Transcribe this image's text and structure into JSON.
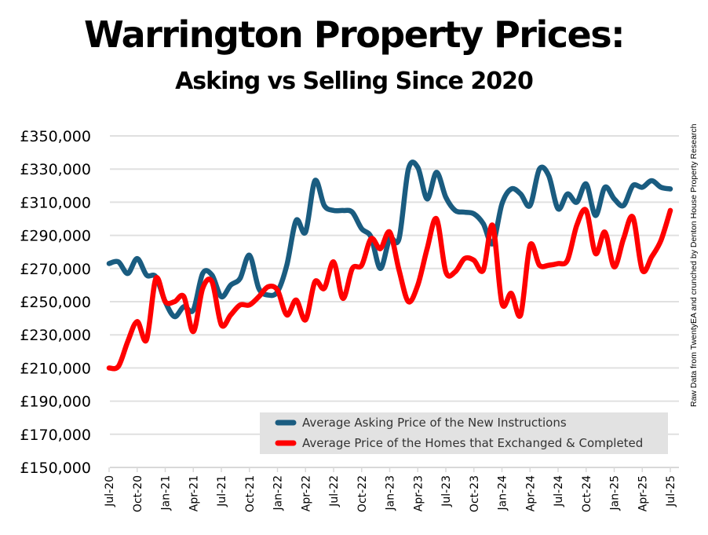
{
  "chart_data": {
    "type": "line",
    "title": "Warrington Property Prices:",
    "subtitle": "Asking vs Selling Since 2020",
    "xlabel": "",
    "ylabel": "",
    "ylim": [
      150000,
      350000
    ],
    "yticks": [
      150000,
      170000,
      190000,
      210000,
      230000,
      250000,
      270000,
      290000,
      310000,
      330000,
      350000
    ],
    "ytick_labels": [
      "£150,000",
      "£170,000",
      "£190,000",
      "£210,000",
      "£230,000",
      "£250,000",
      "£270,000",
      "£290,000",
      "£310,000",
      "£330,000",
      "£350,000"
    ],
    "xtick_labels": [
      "Jul-20",
      "Oct-20",
      "Jan-21",
      "Apr-21",
      "Jul-21",
      "Oct-21",
      "Jan-22",
      "Apr-22",
      "Jul-22",
      "Oct-22",
      "Jan-23",
      "Apr-23",
      "Jul-23",
      "Oct-23",
      "Jan-24",
      "Apr-24",
      "Jul-24",
      "Oct-24",
      "Jan-25",
      "Apr-25",
      "Jul-25"
    ],
    "xtick_every_months": 3,
    "grid": "horizontal",
    "legend_position": "bottom-right",
    "x": [
      "Jul-20",
      "Aug-20",
      "Sep-20",
      "Oct-20",
      "Nov-20",
      "Dec-20",
      "Jan-21",
      "Feb-21",
      "Mar-21",
      "Apr-21",
      "May-21",
      "Jun-21",
      "Jul-21",
      "Aug-21",
      "Sep-21",
      "Oct-21",
      "Nov-21",
      "Dec-21",
      "Jan-22",
      "Feb-22",
      "Mar-22",
      "Apr-22",
      "May-22",
      "Jun-22",
      "Jul-22",
      "Aug-22",
      "Sep-22",
      "Oct-22",
      "Nov-22",
      "Dec-22",
      "Jan-23",
      "Feb-23",
      "Mar-23",
      "Apr-23",
      "May-23",
      "Jun-23",
      "Jul-23",
      "Aug-23",
      "Sep-23",
      "Oct-23",
      "Nov-23",
      "Dec-23",
      "Jan-24",
      "Feb-24",
      "Mar-24",
      "Apr-24",
      "May-24",
      "Jun-24",
      "Jul-24",
      "Aug-24",
      "Sep-24",
      "Oct-24",
      "Nov-24",
      "Dec-24",
      "Jan-25",
      "Feb-25",
      "Mar-25",
      "Apr-25",
      "May-25",
      "Jun-25",
      "Jul-25"
    ],
    "series": [
      {
        "name": "Average Asking Price of the New Instructions",
        "color": "#1a5c80",
        "values": [
          273000,
          274000,
          267000,
          276000,
          266000,
          265000,
          250000,
          241000,
          247000,
          245000,
          267000,
          266000,
          253000,
          260000,
          264000,
          278000,
          258000,
          254000,
          256000,
          272000,
          299000,
          292000,
          323000,
          308000,
          305000,
          305000,
          304000,
          294000,
          289000,
          270000,
          288000,
          288000,
          330000,
          331000,
          312000,
          328000,
          313000,
          305000,
          304000,
          303000,
          297000,
          285000,
          309000,
          318000,
          315000,
          308000,
          330000,
          326000,
          306000,
          315000,
          310000,
          321000,
          302000,
          319000,
          312000,
          308000,
          320000,
          319000,
          323000,
          319000,
          318000
        ]
      },
      {
        "name": "Average Price of the Homes that Exchanged & Completed",
        "color": "#ff0000",
        "values": [
          210000,
          211000,
          226000,
          238000,
          227000,
          264000,
          250000,
          250000,
          253000,
          232000,
          258000,
          262000,
          236000,
          242000,
          248000,
          248000,
          253000,
          259000,
          257000,
          242000,
          251000,
          239000,
          262000,
          258000,
          274000,
          252000,
          270000,
          272000,
          288000,
          282000,
          292000,
          269000,
          250000,
          260000,
          282000,
          300000,
          268000,
          268000,
          276000,
          275000,
          269000,
          296000,
          249000,
          255000,
          242000,
          284000,
          272000,
          272000,
          273000,
          275000,
          296000,
          305000,
          279000,
          292000,
          271000,
          288000,
          301000,
          269000,
          277000,
          287000,
          305000
        ]
      }
    ],
    "source_note": "Raw Data from TwentyEA and crunched by Denton House Property Research"
  }
}
